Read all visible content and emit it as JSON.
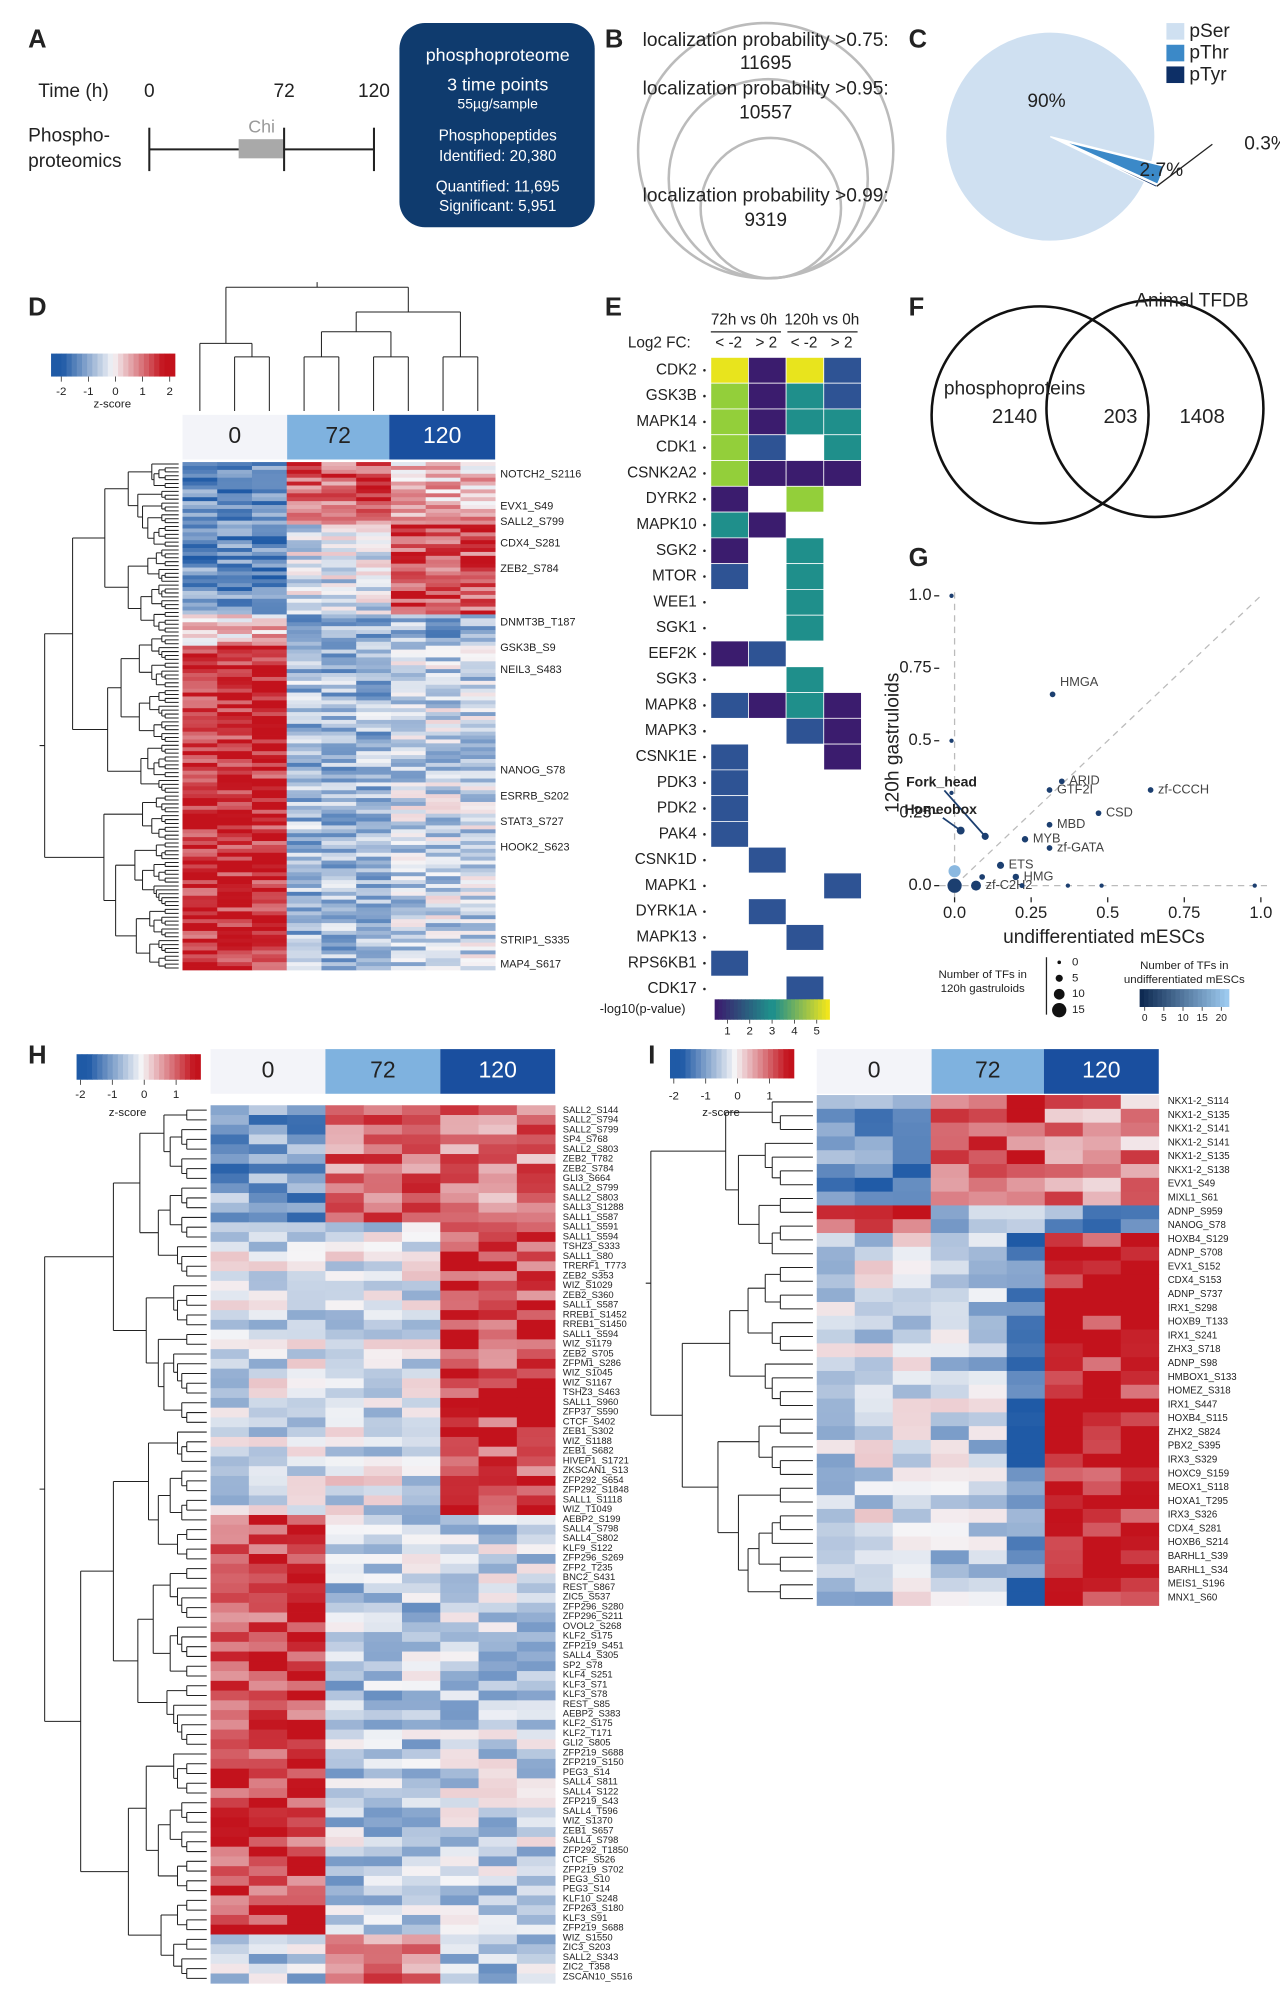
{
  "panel_a": {
    "letter": "A",
    "time_label": "Time (h)",
    "time_ticks": [
      0,
      72,
      120
    ],
    "row_label": [
      "Phospho-",
      "proteomics"
    ],
    "treatment": "Chi",
    "box": [
      "phosphoproteome",
      "3 time points",
      "55µg/sample",
      "Phosphopeptides",
      "Identified: 20,380",
      "Quantified: 11,695",
      "Significant: 5,951"
    ]
  },
  "panel_b": {
    "letter": "B",
    "sets": [
      {
        "label": "localization probability >0.75:",
        "count": 11695
      },
      {
        "label": "localization probability >0.95:",
        "count": 10557
      },
      {
        "label": "localization probability >0.99:",
        "count": 9319
      }
    ]
  },
  "panel_c": {
    "letter": "C",
    "type": "pie",
    "categories": [
      "pSer",
      "pThr",
      "pTyr"
    ],
    "values": [
      90,
      2.7,
      0.3
    ],
    "value_labels": [
      "90%",
      "2.7%",
      "0.3%"
    ],
    "colors": [
      "#cfe0f1",
      "#3b89c8",
      "#0d2f66"
    ]
  },
  "panel_d": {
    "letter": "D",
    "colorbar_ticks": [
      -2,
      -1,
      0,
      1,
      2
    ],
    "colorbar_label": "z-score",
    "groups": [
      "0",
      "72",
      "120"
    ],
    "row_labels": [
      "NOTCH2_S2116",
      "EVX1_S49",
      "SALL2_S799",
      "CDX4_S281",
      "ZEB2_S784",
      "DNMT3B_T187",
      "GSK3B_S9",
      "NEIL3_S483",
      "NANOG_S78",
      "ESRRB_S202",
      "STAT3_S727",
      "HOOK2_S623",
      "STRIP1_S335",
      "MAP4_S617"
    ]
  },
  "panel_e": {
    "letter": "E",
    "comparisons": [
      "72h vs 0h",
      "120h vs 0h"
    ],
    "fc_label": "Log2 FC:",
    "fc_bins": [
      "< -2",
      "> 2",
      "< -2",
      "> 2"
    ],
    "kinases": [
      "CDK2",
      "GSK3B",
      "MAPK14",
      "CDK1",
      "CSNK2A2",
      "DYRK2",
      "MAPK10",
      "SGK2",
      "MTOR",
      "WEE1",
      "SGK1",
      "EEF2K",
      "SGK3",
      "MAPK8",
      "MAPK3",
      "CSNK1E",
      "PDK3",
      "PDK2",
      "PAK4",
      "CSNK1D",
      "MAPK1",
      "DYRK1A",
      "MAPK13",
      "RPS6KB1",
      "CDK17"
    ],
    "colorbar_label": "-log10(p-value)",
    "colorbar_ticks": [
      1,
      2,
      3,
      4,
      5
    ]
  },
  "panel_f": {
    "letter": "F",
    "sets": [
      "phosphoproteins",
      "Animal TFDB"
    ],
    "counts": [
      2140,
      203,
      1408
    ]
  },
  "panel_g": {
    "letter": "G",
    "type": "scatter",
    "xlabel": "undifferentiated mESCs",
    "ylabel": "120h gastruloids",
    "xlim": [
      -0.05,
      1.02
    ],
    "ylim": [
      -0.04,
      1.03
    ],
    "xticks": [
      {
        "value": 0,
        "label": "0.0"
      },
      0.25,
      0.5,
      0.75,
      {
        "value": 1,
        "label": "1.0"
      }
    ],
    "yticks": [
      {
        "value": 0,
        "label": "0.0"
      },
      0.25,
      0.5,
      0.75,
      {
        "value": 1,
        "label": "1.0"
      }
    ],
    "points": {
      "x": [
        0.32,
        0.35,
        0.31,
        0.64,
        0.47,
        0.31,
        0.23,
        0.31,
        0.15,
        0.2,
        0.07,
        0.1,
        0.02,
        -0.01,
        -0.01,
        -0.01,
        0.0,
        0.0,
        0.09,
        0.22,
        0.37,
        0.48,
        0.98
      ],
      "y": [
        0.66,
        0.36,
        0.33,
        0.33,
        0.25,
        0.21,
        0.16,
        0.13,
        0.07,
        0.03,
        0.0,
        0.17,
        0.19,
        1.0,
        0.5,
        0.32,
        0.0,
        0.05,
        0.03,
        0.0,
        0.0,
        0.0,
        0.0
      ],
      "sizes": [
        3,
        3,
        3,
        3,
        3,
        3,
        4,
        3,
        5,
        4,
        9,
        5,
        6,
        1,
        1,
        1,
        15,
        12,
        3,
        2,
        1,
        1,
        1
      ],
      "labels": [
        "HMGA",
        "ARID",
        "GTF2I",
        "zf-CCCH",
        "CSD",
        "MBD",
        "MYB",
        "zf-GATA",
        "ETS",
        "HMG",
        "zf-C2H2",
        "Fork_head",
        "Homeobox",
        null,
        null,
        null,
        null,
        null,
        null,
        null,
        null,
        null,
        null
      ]
    },
    "size_legend": {
      "title": [
        "Number of TFs in",
        "120h gastruloids"
      ],
      "ticks": [
        0,
        5,
        10,
        15
      ]
    },
    "color_legend": {
      "title": [
        "Number of TFs in",
        "undifferentiated mESCs"
      ],
      "ticks": [
        0,
        5,
        10,
        15,
        20
      ]
    }
  },
  "panel_h": {
    "letter": "H",
    "colorbar_ticks": [
      -2,
      -1,
      0,
      1
    ],
    "colorbar_label": "z-score",
    "groups": [
      "0",
      "72",
      "120"
    ],
    "row_labels": [
      "SALL2_S144",
      "SALL2_S794",
      "SALL2_S799",
      "SP4_S768",
      "SALL2_S803",
      "ZEB2_T782",
      "ZEB2_S784",
      "GLI3_S664",
      "SALL2_S799",
      "SALL2_S803",
      "SALL3_S1288",
      "SALL1_S587",
      "SALL1_S591",
      "SALL1_S594",
      "TSHZ3_S333",
      "SALL1_S80",
      "TRERF1_T773",
      "ZEB2_S353",
      "WIZ_S1029",
      "ZEB2_S360",
      "SALL1_S587",
      "RREB1_S1452",
      "RREB1_S1450",
      "SALL1_S594",
      "WIZ_S1179",
      "ZEB2_S705",
      "ZFPM1_S286",
      "WIZ_S1045",
      "WIZ_S1167",
      "TSHZ3_S463",
      "SALL1_S960",
      "ZFP37_S590",
      "CTCF_S402",
      "ZEB1_S302",
      "WIZ_S1188",
      "ZEB1_S682",
      "HIVEP1_S1721",
      "ZKSCAN1_S13",
      "ZFP292_S654",
      "ZFP292_S1848",
      "SALL1_S1118",
      "WIZ_T1049",
      "AEBP2_S199",
      "SALL4_S798",
      "SALL4_S802",
      "KLF9_S122",
      "ZFP296_S269",
      "ZFP2_T235",
      "BNC2_S431",
      "REST_S867",
      "ZIC5_S537",
      "ZFP296_S280",
      "ZFP296_S211",
      "OVOL2_S268",
      "KLF2_S175",
      "ZFP219_S451",
      "SALL4_S305",
      "SP2_S78",
      "KLF4_S251",
      "KLF3_S71",
      "KLF3_S78",
      "REST_S85",
      "AEBP2_S383",
      "KLF2_S175",
      "KLF2_T171",
      "GLI2_S805",
      "ZFP219_S688",
      "ZFP219_S150",
      "PEG3_S14",
      "SALL4_S811",
      "SALL4_S122",
      "ZFP219_S43",
      "SALL4_T596",
      "WIZ_S1370",
      "ZEB1_S657",
      "SALL4_S798",
      "ZFP292_T1850",
      "CTCF_S526",
      "ZFP219_S702",
      "PEG3_S10",
      "PEG3_S14",
      "KLF10_S248",
      "ZFP263_S180",
      "KLF3_S91",
      "ZFP219_S688",
      "WIZ_S1550",
      "ZIC3_S203",
      "SALL2_S343",
      "ZIC2_T358",
      "ZSCAN10_S516"
    ]
  },
  "panel_i": {
    "letter": "I",
    "colorbar_ticks": [
      -2,
      -1,
      0,
      1
    ],
    "colorbar_label": "z-score",
    "groups": [
      "0",
      "72",
      "120"
    ],
    "row_labels": [
      "NKX1-2_S114",
      "NKX1-2_S135",
      "NKX1-2_S141",
      "NKX1-2_S141",
      "NKX1-2_S135",
      "NKX1-2_S138",
      "EVX1_S49",
      "MIXL1_S61",
      "ADNP_S959",
      "NANOG_S78",
      "HOXB4_S129",
      "ADNP_S708",
      "EVX1_S152",
      "CDX4_S153",
      "ADNP_S737",
      "IRX1_S298",
      "HOXB9_T133",
      "IRX1_S241",
      "ZHX3_S718",
      "ADNP_S98",
      "HMBOX1_S133",
      "HOMEZ_S318",
      "IRX1_S447",
      "HOXB4_S115",
      "ZHX2_S824",
      "PBX2_S395",
      "IRX3_S329",
      "HOXC9_S159",
      "MEOX1_S118",
      "HOXA1_T295",
      "IRX3_S326",
      "CDX4_S281",
      "HOXB6_S214",
      "BARHL1_S39",
      "BARHL1_S34",
      "MEIS1_S196",
      "MNX1_S60"
    ]
  }
}
